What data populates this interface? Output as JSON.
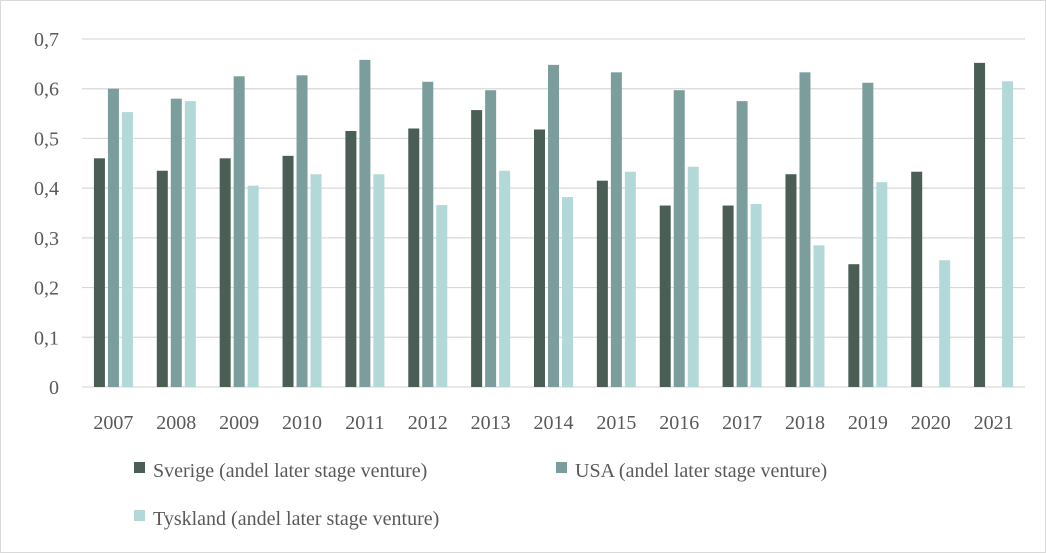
{
  "chart_data": {
    "type": "bar",
    "categories": [
      "2007",
      "2008",
      "2009",
      "2010",
      "2011",
      "2012",
      "2013",
      "2014",
      "2015",
      "2016",
      "2017",
      "2018",
      "2019",
      "2020",
      "2021"
    ],
    "series": [
      {
        "name": "Sverige (andel later stage venture)",
        "color": "#4a5e56",
        "values": [
          0.46,
          0.435,
          0.46,
          0.465,
          0.515,
          0.52,
          0.557,
          0.518,
          0.415,
          0.365,
          0.365,
          0.428,
          0.247,
          0.433,
          0.652
        ]
      },
      {
        "name": "USA (andel later stage venture)",
        "color": "#7b9e9d",
        "values": [
          0.6,
          0.58,
          0.625,
          0.627,
          0.658,
          0.614,
          0.597,
          0.648,
          0.633,
          0.597,
          0.575,
          0.633,
          0.612,
          null,
          null
        ]
      },
      {
        "name": "Tyskland (andel later stage venture)",
        "color": "#b2d9d8",
        "values": [
          0.553,
          0.575,
          0.405,
          0.428,
          0.428,
          0.366,
          0.435,
          0.382,
          0.433,
          0.443,
          0.368,
          0.285,
          0.412,
          0.255,
          0.615
        ]
      }
    ],
    "yticks": [
      "0",
      "0,1",
      "0,2",
      "0,3",
      "0,4",
      "0,5",
      "0,6",
      "0,7"
    ],
    "ylim": [
      0,
      0.7
    ],
    "grid": true,
    "legend_position": "bottom",
    "title": "",
    "xlabel": "",
    "ylabel": ""
  }
}
